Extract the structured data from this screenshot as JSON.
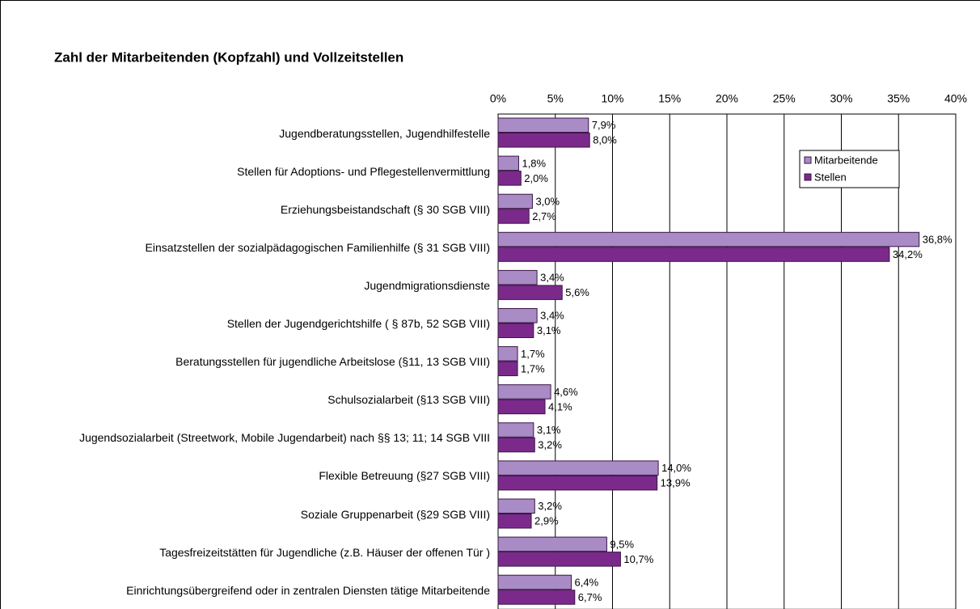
{
  "chart_data": {
    "type": "bar",
    "orientation": "horizontal",
    "title": "Zahl der Mitarbeitenden (Kopfzahl) und Vollzeitstellen",
    "categories": [
      "Jugendberatungsstellen, Jugendhilfestelle",
      "Stellen für Adoptions- und Pflegestellenvermittlung",
      "Erziehungsbeistandschaft (§ 30 SGB VIII)",
      "Einsatzstellen der sozialpädagogischen Familienhilfe  (§ 31 SGB VIII)",
      "Jugendmigrationsdienste",
      "Stellen der Jugendgerichtshilfe  ( § 87b, 52 SGB VIII)",
      "Beratungsstellen für jugendliche Arbeitslose  (§11, 13 SGB VIII)",
      "Schulsozialarbeit (§13 SGB VIII)",
      "Jugendsozialarbeit (Streetwork, Mobile Jugendarbeit) nach §§ 13; 11; 14 SGB VIII",
      "Flexible Betreuung (§27 SGB VIII)",
      "Soziale Gruppenarbeit (§29 SGB VIII)",
      "Tagesfreizeitstätten für Jugendliche (z.B. Häuser der offenen Tür )",
      "Einrichtungsübergreifend oder in zentralen Diensten tätige Mitarbeitende"
    ],
    "series": [
      {
        "name": "Mitarbeitende",
        "color": "#a98bc6",
        "values": [
          7.9,
          1.8,
          3.0,
          36.8,
          3.4,
          3.4,
          1.7,
          4.6,
          3.1,
          14.0,
          3.2,
          9.5,
          6.4
        ],
        "value_labels": [
          "7,9%",
          "1,8%",
          "3,0%",
          "36,8%",
          "3,4%",
          "3,4%",
          "1,7%",
          "4,6%",
          "3,1%",
          "14,0%",
          "3,2%",
          "9,5%",
          "6,4%"
        ]
      },
      {
        "name": "Stellen",
        "color": "#7b2a8c",
        "values": [
          8.0,
          2.0,
          2.7,
          34.2,
          5.6,
          3.1,
          1.7,
          4.1,
          3.2,
          13.9,
          2.9,
          10.7,
          6.7
        ],
        "value_labels": [
          "8,0%",
          "2,0%",
          "2,7%",
          "34,2%",
          "5,6%",
          "3,1%",
          "1,7%",
          "4,1%",
          "3,2%",
          "13,9%",
          "2,9%",
          "10,7%",
          "6,7%"
        ]
      }
    ],
    "xlim": [
      0,
      40
    ],
    "xticks": [
      {
        "value": 0,
        "label": "0%"
      },
      {
        "value": 5,
        "label": "5%"
      },
      {
        "value": 10,
        "label": "10%"
      },
      {
        "value": 15,
        "label": "15%"
      },
      {
        "value": 20,
        "label": "20%"
      },
      {
        "value": 25,
        "label": "25%"
      },
      {
        "value": 30,
        "label": "30%"
      },
      {
        "value": 35,
        "label": "35%"
      },
      {
        "value": 40,
        "label": "40%"
      }
    ],
    "grid": true,
    "legend": "upper right"
  }
}
